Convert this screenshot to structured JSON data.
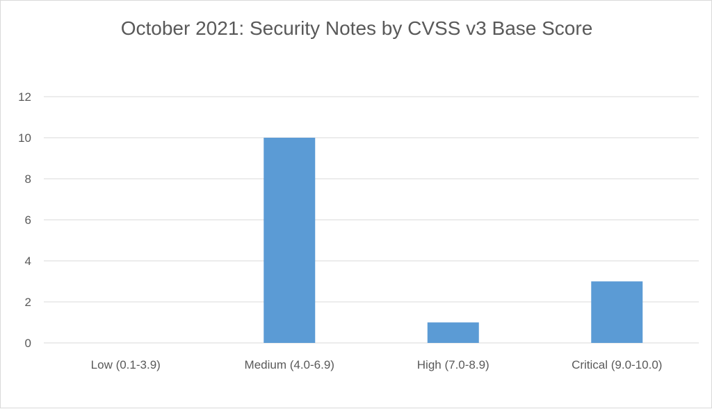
{
  "chart_data": {
    "type": "bar",
    "title": "October 2021: Security Notes by CVSS v3 Base Score",
    "categories": [
      "Low (0.1-3.9)",
      "Medium (4.0-6.9)",
      "High (7.0-8.9)",
      "Critical (9.0-10.0)"
    ],
    "values": [
      0,
      10,
      1,
      3
    ],
    "ylim": [
      0,
      12
    ],
    "yticks": [
      0,
      2,
      4,
      6,
      8,
      10,
      12
    ],
    "xlabel": "",
    "ylabel": "",
    "grid": true,
    "legend": "none",
    "bar_color": "#5b9bd5",
    "gridline_color": "#d9d9d9"
  }
}
